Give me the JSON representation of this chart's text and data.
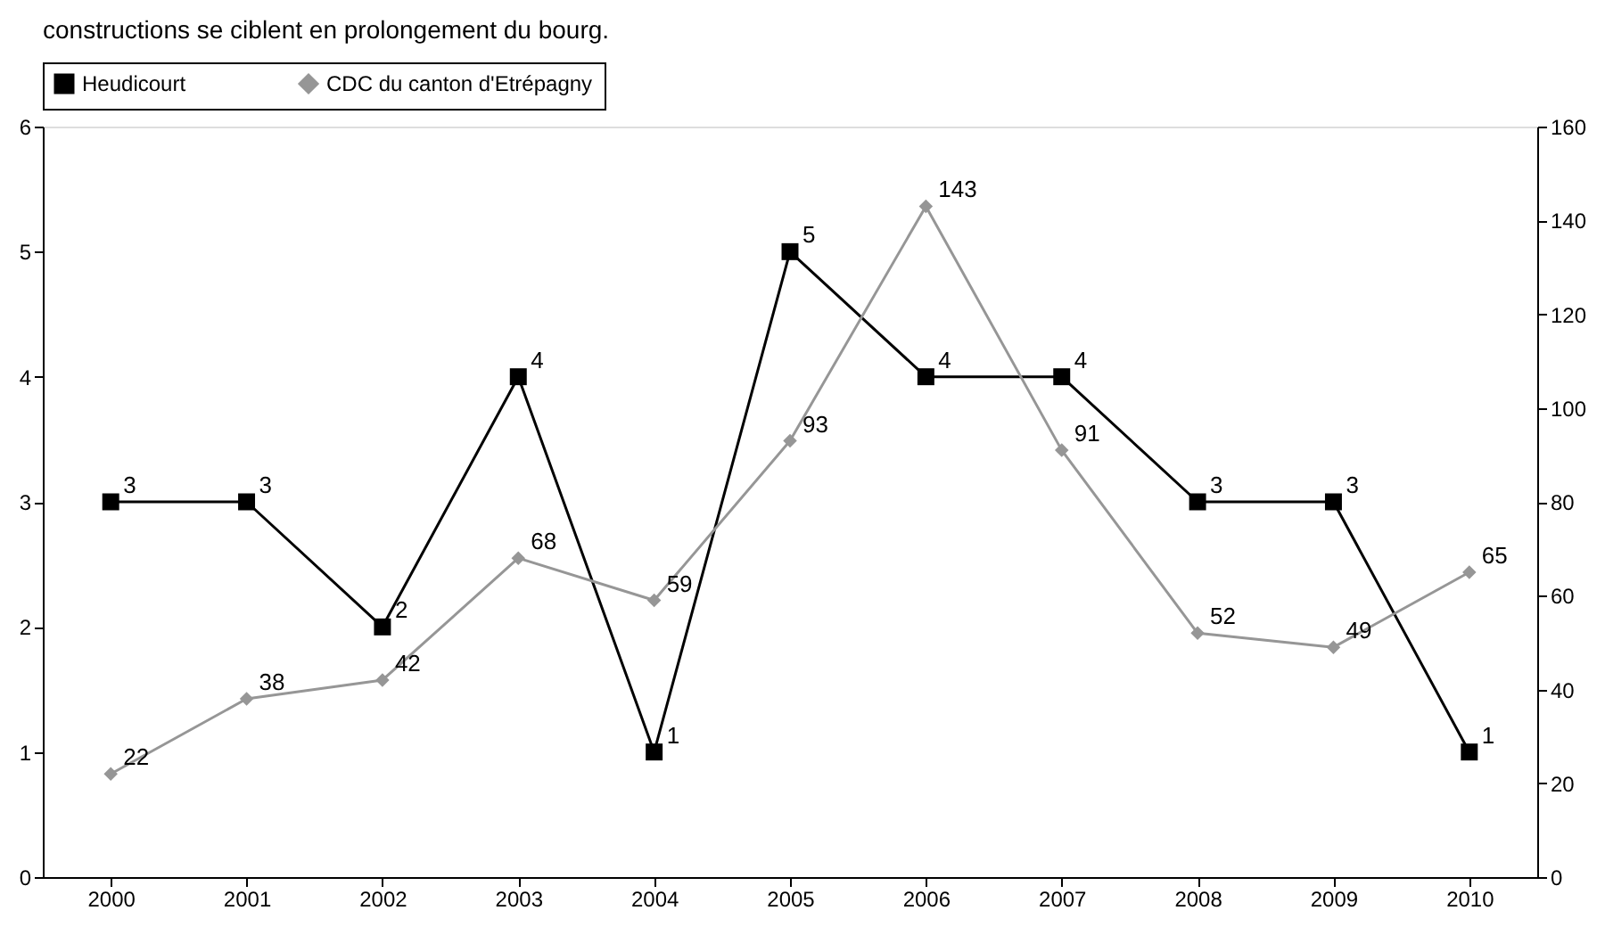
{
  "chart_data": {
    "type": "line",
    "annotations": [
      "constructions se ciblent en prolongement du bourg."
    ],
    "categories": [
      "2000",
      "2001",
      "2002",
      "2003",
      "2004",
      "2005",
      "2006",
      "2007",
      "2008",
      "2009",
      "2010"
    ],
    "series": [
      {
        "name": "Heudicourt",
        "color": "#000000",
        "marker": "square",
        "values": [
          3,
          3,
          2,
          4,
          1,
          5,
          4,
          4,
          3,
          3,
          1
        ]
      },
      {
        "name": "CDC du canton d'Etrépagny",
        "color": "#969696",
        "marker": "diamond",
        "axis": "y2",
        "values": [
          22,
          38,
          42,
          68,
          59,
          93,
          143,
          91,
          52,
          49,
          65
        ]
      }
    ],
    "ylim": [
      0,
      6
    ],
    "yticks": [
      0,
      1,
      2,
      3,
      4,
      5,
      6
    ],
    "y2lim": [
      0,
      160
    ],
    "y2ticks": [
      0,
      20,
      40,
      60,
      80,
      100,
      120,
      140,
      160
    ],
    "data_labels": true,
    "grid": false,
    "legend": "top",
    "line_style": "solid"
  }
}
